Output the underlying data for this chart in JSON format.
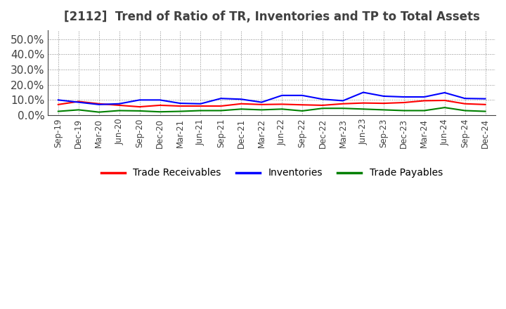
{
  "title": "[2112]  Trend of Ratio of TR, Inventories and TP to Total Assets",
  "x_labels": [
    "Sep-19",
    "Dec-19",
    "Mar-20",
    "Jun-20",
    "Sep-20",
    "Dec-20",
    "Mar-21",
    "Jun-21",
    "Sep-21",
    "Dec-21",
    "Mar-22",
    "Jun-22",
    "Sep-22",
    "Dec-22",
    "Mar-23",
    "Jun-23",
    "Sep-23",
    "Dec-23",
    "Mar-24",
    "Jun-24",
    "Sep-24",
    "Dec-24"
  ],
  "trade_receivables": [
    0.07,
    0.09,
    0.075,
    0.065,
    0.055,
    0.065,
    0.06,
    0.06,
    0.06,
    0.075,
    0.07,
    0.072,
    0.068,
    0.065,
    0.075,
    0.08,
    0.078,
    0.083,
    0.095,
    0.097,
    0.075,
    0.07
  ],
  "inventories": [
    0.1,
    0.085,
    0.07,
    0.075,
    0.1,
    0.1,
    0.078,
    0.075,
    0.11,
    0.105,
    0.085,
    0.13,
    0.13,
    0.105,
    0.095,
    0.15,
    0.125,
    0.12,
    0.12,
    0.148,
    0.11,
    0.108
  ],
  "trade_payables": [
    0.025,
    0.035,
    0.02,
    0.03,
    0.028,
    0.022,
    0.025,
    0.03,
    0.03,
    0.04,
    0.035,
    0.04,
    0.028,
    0.045,
    0.045,
    0.04,
    0.035,
    0.03,
    0.03,
    0.05,
    0.03,
    0.025
  ],
  "ylim": [
    0.0,
    0.56
  ],
  "yticks": [
    0.0,
    0.1,
    0.2,
    0.3,
    0.4,
    0.5
  ],
  "line_colors": {
    "trade_receivables": "#ff0000",
    "inventories": "#0000ff",
    "trade_payables": "#008000"
  },
  "background_color": "#ffffff",
  "plot_bg_color": "#ffffff",
  "legend_labels": [
    "Trade Receivables",
    "Inventories",
    "Trade Payables"
  ],
  "title_fontsize": 12,
  "title_color": "#404040",
  "ytick_fontsize": 11,
  "xtick_fontsize": 8.5,
  "legend_fontsize": 10
}
